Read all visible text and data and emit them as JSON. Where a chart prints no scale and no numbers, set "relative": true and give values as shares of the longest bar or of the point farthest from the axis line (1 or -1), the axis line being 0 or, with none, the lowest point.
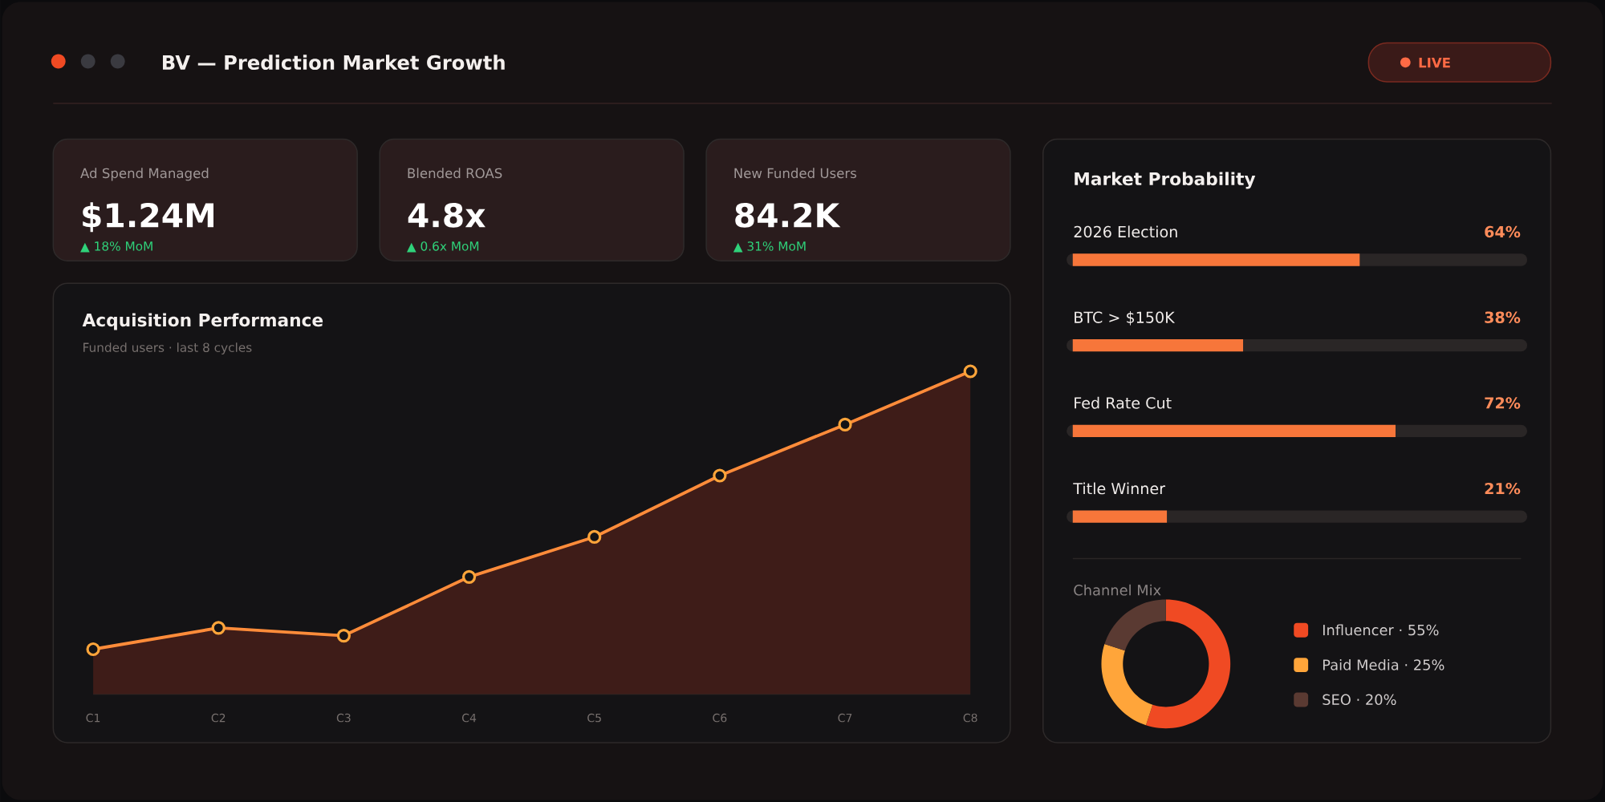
{
  "chart_data": [
    {
      "type": "other",
      "title": "BV — Prediction Market Growth",
      "annotations": [
        "LIVE",
        "Ad Spend Managed",
        "$1.24M",
        "▲ 18% MoM",
        "Blended ROAS",
        "4.8x",
        "▲ 0.6x MoM",
        "New Funded Users",
        "84.2K",
        "▲ 31% MoM"
      ]
    },
    {
      "type": "area",
      "title": "Acquisition Performance",
      "subtitle": "Funded users · last 8 cycles",
      "categories": [
        "C1",
        "C2",
        "C3",
        "C4",
        "C5",
        "C6",
        "C7",
        "C8"
      ],
      "values": [
        0.139,
        0.205,
        0.181,
        0.363,
        0.487,
        0.677,
        0.835,
        1
      ],
      "color": "#ff8c3a",
      "relative": true,
      "marker": "circle"
    },
    {
      "type": "bar",
      "orientation": "horizontal",
      "title": "Market Probability",
      "categories": [
        "2026 Election",
        "BTC > $150K",
        "Fed Rate Cut",
        "Title Winner"
      ],
      "values": [
        64,
        38,
        72,
        21
      ],
      "value_labels": [
        "64%",
        "38%",
        "72%",
        "21%"
      ],
      "color": "#f7763a",
      "xlim": [
        0,
        100
      ],
      "tick_labels": false
    },
    {
      "type": "donut",
      "title": "Channel Mix",
      "categories": [
        "Influencer · 55%",
        "Paid Media · 25%",
        "SEO · 20%"
      ],
      "values": [
        55,
        25,
        20
      ],
      "colors": [
        "#f04a23",
        "#ffa53a",
        "#5a3a32"
      ],
      "legend": "right"
    }
  ]
}
